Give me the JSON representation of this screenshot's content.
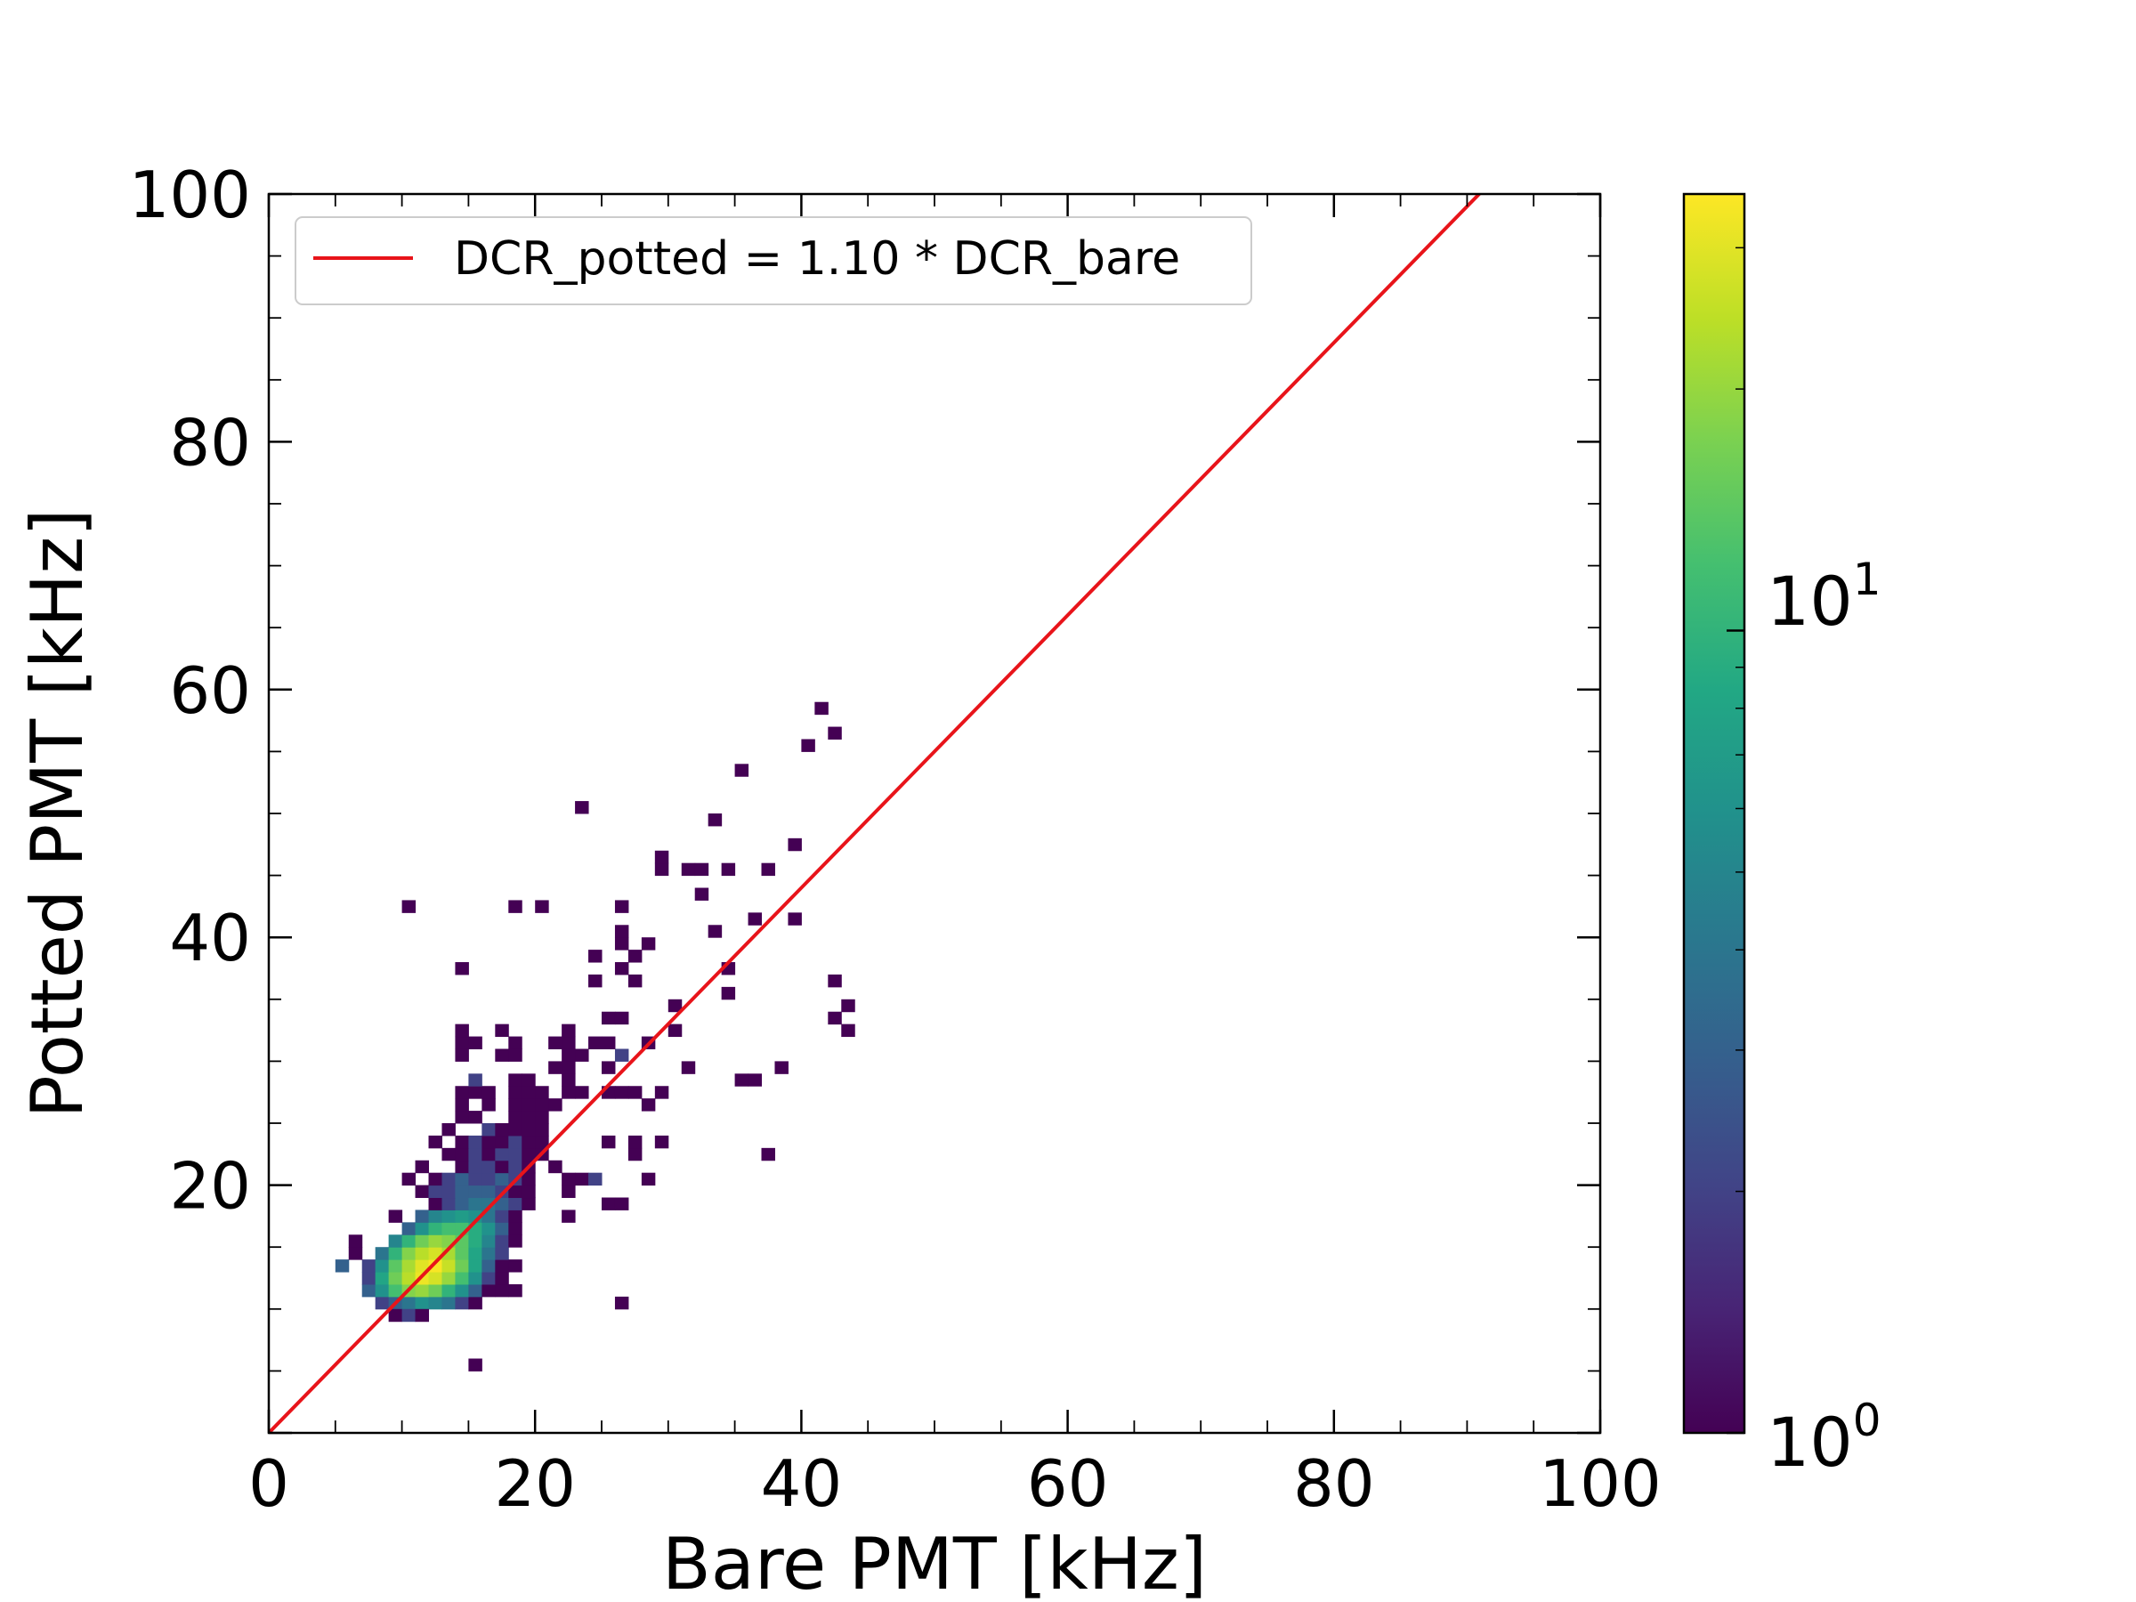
{
  "chart_data": {
    "type": "heatmap",
    "xlabel": "Bare PMT [kHz]",
    "ylabel": "Potted PMT [kHz]",
    "xlim": [
      0,
      100
    ],
    "ylim": [
      0,
      100
    ],
    "x_ticks": [
      "0",
      "20",
      "40",
      "60",
      "80",
      "100"
    ],
    "y_ticks": [
      "20",
      "40",
      "60",
      "80",
      "100"
    ],
    "bin_width": 1.0,
    "legend": {
      "label": "DCR_potted = 1.10 * DCR_bare",
      "color": "#e8141a",
      "location": "upper left"
    },
    "fit_line": {
      "slope": 1.1,
      "intercept": 0
    },
    "colorbar": {
      "scale": "log",
      "vmin": 1,
      "vmax": 35,
      "colormap": "viridis",
      "tick_base": "10",
      "tick_exponents": [
        "0",
        "1"
      ]
    },
    "bins": [
      [
        8,
        10,
        2
      ],
      [
        9,
        10,
        3
      ],
      [
        10,
        10,
        4
      ],
      [
        11,
        10,
        6
      ],
      [
        12,
        10,
        5
      ],
      [
        13,
        10,
        4
      ],
      [
        14,
        10,
        2
      ],
      [
        15,
        10,
        1
      ],
      [
        9,
        9,
        1
      ],
      [
        10,
        9,
        2
      ],
      [
        11,
        9,
        1
      ],
      [
        7,
        11,
        3
      ],
      [
        8,
        11,
        6
      ],
      [
        9,
        11,
        12
      ],
      [
        10,
        11,
        18
      ],
      [
        11,
        11,
        20
      ],
      [
        12,
        11,
        16
      ],
      [
        13,
        11,
        10
      ],
      [
        14,
        11,
        6
      ],
      [
        15,
        11,
        3
      ],
      [
        16,
        11,
        1
      ],
      [
        17,
        11,
        1
      ],
      [
        18,
        11,
        1
      ],
      [
        7,
        12,
        2
      ],
      [
        8,
        12,
        8
      ],
      [
        9,
        12,
        16
      ],
      [
        10,
        12,
        24
      ],
      [
        11,
        12,
        32
      ],
      [
        12,
        12,
        28
      ],
      [
        13,
        12,
        20
      ],
      [
        14,
        12,
        12
      ],
      [
        15,
        12,
        6
      ],
      [
        16,
        12,
        2
      ],
      [
        17,
        12,
        1
      ],
      [
        5,
        13,
        3
      ],
      [
        7,
        13,
        2
      ],
      [
        8,
        13,
        6
      ],
      [
        9,
        13,
        14
      ],
      [
        10,
        13,
        22
      ],
      [
        11,
        13,
        30
      ],
      [
        12,
        13,
        34
      ],
      [
        13,
        13,
        26
      ],
      [
        14,
        13,
        16
      ],
      [
        15,
        13,
        8
      ],
      [
        16,
        13,
        3
      ],
      [
        17,
        13,
        1
      ],
      [
        18,
        13,
        1
      ],
      [
        6,
        14,
        1
      ],
      [
        8,
        14,
        4
      ],
      [
        9,
        14,
        10
      ],
      [
        10,
        14,
        18
      ],
      [
        11,
        14,
        24
      ],
      [
        12,
        14,
        28
      ],
      [
        13,
        14,
        22
      ],
      [
        14,
        14,
        14
      ],
      [
        15,
        14,
        8
      ],
      [
        16,
        14,
        4
      ],
      [
        17,
        14,
        2
      ],
      [
        6,
        15,
        1
      ],
      [
        9,
        15,
        5
      ],
      [
        10,
        15,
        10
      ],
      [
        11,
        15,
        16
      ],
      [
        12,
        15,
        20
      ],
      [
        13,
        15,
        18
      ],
      [
        14,
        15,
        14
      ],
      [
        15,
        15,
        9
      ],
      [
        16,
        15,
        5
      ],
      [
        17,
        15,
        2
      ],
      [
        18,
        15,
        1
      ],
      [
        10,
        16,
        3
      ],
      [
        11,
        16,
        6
      ],
      [
        12,
        16,
        10
      ],
      [
        13,
        16,
        12
      ],
      [
        14,
        16,
        12
      ],
      [
        15,
        16,
        9
      ],
      [
        16,
        16,
        6
      ],
      [
        17,
        16,
        3
      ],
      [
        18,
        16,
        1
      ],
      [
        9,
        17,
        1
      ],
      [
        11,
        17,
        3
      ],
      [
        12,
        17,
        5
      ],
      [
        13,
        17,
        6
      ],
      [
        14,
        17,
        7
      ],
      [
        15,
        17,
        6
      ],
      [
        16,
        17,
        4
      ],
      [
        17,
        17,
        2
      ],
      [
        18,
        17,
        1
      ],
      [
        22,
        17,
        1
      ],
      [
        12,
        18,
        1
      ],
      [
        13,
        18,
        2
      ],
      [
        14,
        18,
        3
      ],
      [
        15,
        18,
        4
      ],
      [
        16,
        18,
        4
      ],
      [
        17,
        18,
        3
      ],
      [
        18,
        18,
        2
      ],
      [
        19,
        18,
        1
      ],
      [
        25,
        18,
        1
      ],
      [
        26,
        18,
        1
      ],
      [
        11,
        19,
        1
      ],
      [
        12,
        19,
        2
      ],
      [
        13,
        19,
        2
      ],
      [
        14,
        19,
        3
      ],
      [
        15,
        19,
        3
      ],
      [
        16,
        19,
        3
      ],
      [
        17,
        19,
        2
      ],
      [
        18,
        19,
        1
      ],
      [
        19,
        19,
        1
      ],
      [
        22,
        19,
        1
      ],
      [
        10,
        20,
        1
      ],
      [
        12,
        20,
        1
      ],
      [
        13,
        20,
        2
      ],
      [
        14,
        20,
        3
      ],
      [
        15,
        20,
        2
      ],
      [
        16,
        20,
        2
      ],
      [
        17,
        20,
        3
      ],
      [
        18,
        20,
        2
      ],
      [
        19,
        20,
        1
      ],
      [
        22,
        20,
        1
      ],
      [
        23,
        20,
        1
      ],
      [
        24,
        20,
        2
      ],
      [
        28,
        20,
        1
      ],
      [
        11,
        21,
        1
      ],
      [
        14,
        21,
        1
      ],
      [
        15,
        21,
        2
      ],
      [
        16,
        21,
        2
      ],
      [
        17,
        21,
        1
      ],
      [
        18,
        21,
        2
      ],
      [
        19,
        21,
        1
      ],
      [
        21,
        21,
        1
      ],
      [
        13,
        22,
        1
      ],
      [
        14,
        22,
        1
      ],
      [
        15,
        22,
        2
      ],
      [
        16,
        22,
        1
      ],
      [
        17,
        22,
        2
      ],
      [
        18,
        22,
        2
      ],
      [
        19,
        22,
        1
      ],
      [
        20,
        22,
        1
      ],
      [
        27,
        22,
        1
      ],
      [
        37,
        22,
        1
      ],
      [
        12,
        23,
        1
      ],
      [
        14,
        23,
        1
      ],
      [
        15,
        23,
        2
      ],
      [
        16,
        23,
        1
      ],
      [
        17,
        23,
        1
      ],
      [
        18,
        23,
        2
      ],
      [
        19,
        23,
        1
      ],
      [
        20,
        23,
        1
      ],
      [
        25,
        23,
        1
      ],
      [
        27,
        23,
        1
      ],
      [
        29,
        23,
        1
      ],
      [
        13,
        24,
        1
      ],
      [
        16,
        24,
        2
      ],
      [
        17,
        24,
        1
      ],
      [
        18,
        24,
        1
      ],
      [
        19,
        24,
        1
      ],
      [
        20,
        24,
        1
      ],
      [
        14,
        25,
        1
      ],
      [
        15,
        25,
        1
      ],
      [
        18,
        25,
        1
      ],
      [
        19,
        25,
        1
      ],
      [
        20,
        25,
        1
      ],
      [
        14,
        26,
        1
      ],
      [
        16,
        26,
        1
      ],
      [
        18,
        26,
        1
      ],
      [
        19,
        26,
        1
      ],
      [
        20,
        26,
        1
      ],
      [
        21,
        26,
        1
      ],
      [
        28,
        26,
        1
      ],
      [
        14,
        27,
        1
      ],
      [
        15,
        27,
        1
      ],
      [
        16,
        27,
        1
      ],
      [
        18,
        27,
        1
      ],
      [
        19,
        27,
        1
      ],
      [
        20,
        27,
        1
      ],
      [
        22,
        27,
        1
      ],
      [
        23,
        27,
        1
      ],
      [
        25,
        27,
        1
      ],
      [
        26,
        27,
        1
      ],
      [
        27,
        27,
        1
      ],
      [
        29,
        27,
        1
      ],
      [
        15,
        28,
        2
      ],
      [
        18,
        28,
        1
      ],
      [
        19,
        28,
        1
      ],
      [
        22,
        28,
        1
      ],
      [
        35,
        28,
        1
      ],
      [
        36,
        28,
        1
      ],
      [
        21,
        29,
        1
      ],
      [
        22,
        29,
        1
      ],
      [
        25,
        29,
        1
      ],
      [
        31,
        29,
        1
      ],
      [
        38,
        29,
        1
      ],
      [
        14,
        30,
        1
      ],
      [
        17,
        30,
        1
      ],
      [
        18,
        30,
        1
      ],
      [
        22,
        30,
        1
      ],
      [
        23,
        30,
        1
      ],
      [
        26,
        30,
        2
      ],
      [
        14,
        31,
        1
      ],
      [
        15,
        31,
        1
      ],
      [
        18,
        31,
        1
      ],
      [
        21,
        31,
        1
      ],
      [
        22,
        31,
        1
      ],
      [
        24,
        31,
        1
      ],
      [
        25,
        31,
        1
      ],
      [
        28,
        31,
        1
      ],
      [
        14,
        32,
        1
      ],
      [
        17,
        32,
        1
      ],
      [
        22,
        32,
        1
      ],
      [
        30,
        32,
        1
      ],
      [
        43,
        32,
        1
      ],
      [
        25,
        33,
        1
      ],
      [
        26,
        33,
        1
      ],
      [
        42,
        33,
        1
      ],
      [
        30,
        34,
        1
      ],
      [
        43,
        34,
        1
      ],
      [
        34,
        35,
        1
      ],
      [
        24,
        36,
        1
      ],
      [
        27,
        36,
        1
      ],
      [
        42,
        36,
        1
      ],
      [
        14,
        37,
        1
      ],
      [
        26,
        37,
        1
      ],
      [
        34,
        37,
        1
      ],
      [
        24,
        38,
        1
      ],
      [
        27,
        38,
        1
      ],
      [
        26,
        39,
        1
      ],
      [
        28,
        39,
        1
      ],
      [
        26,
        40,
        1
      ],
      [
        33,
        40,
        1
      ],
      [
        36,
        41,
        1
      ],
      [
        39,
        41,
        1
      ],
      [
        10,
        42,
        1
      ],
      [
        18,
        42,
        1
      ],
      [
        20,
        42,
        1
      ],
      [
        26,
        42,
        1
      ],
      [
        32,
        43,
        1
      ],
      [
        29,
        45,
        1
      ],
      [
        31,
        45,
        1
      ],
      [
        32,
        45,
        1
      ],
      [
        34,
        45,
        1
      ],
      [
        37,
        45,
        1
      ],
      [
        29,
        46,
        1
      ],
      [
        39,
        47,
        1
      ],
      [
        33,
        49,
        1
      ],
      [
        23,
        50,
        1
      ],
      [
        35,
        53,
        1
      ],
      [
        40,
        55,
        1
      ],
      [
        42,
        56,
        1
      ],
      [
        41,
        58,
        1
      ],
      [
        15,
        5,
        1
      ],
      [
        26,
        10,
        1
      ]
    ]
  }
}
